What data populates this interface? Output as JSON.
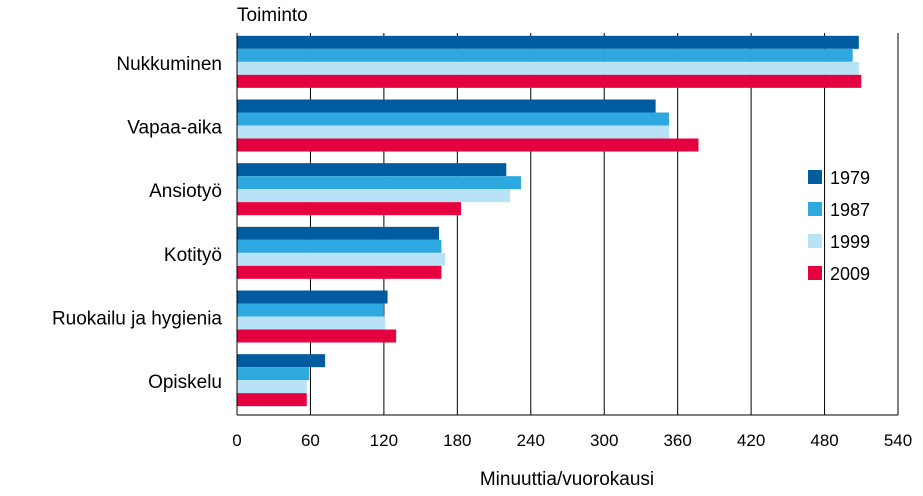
{
  "chart_data": {
    "type": "bar",
    "orientation": "horizontal",
    "title": "Toiminto",
    "xlabel": "Minuuttia/vuorokausi",
    "ylabel": "",
    "xlim": [
      0,
      540
    ],
    "xticks": [
      0,
      60,
      120,
      180,
      240,
      300,
      360,
      420,
      480,
      540
    ],
    "grid": "vertical",
    "legend_position": "right",
    "categories": [
      "Nukkuminen",
      "Vapaa-aika",
      "Ansiotyö",
      "Kotityö",
      "Ruokailu ja hygienia",
      "Opiskelu"
    ],
    "series": [
      {
        "name": "1979",
        "color": "#005c9e",
        "values": [
          508,
          342,
          220,
          165,
          123,
          72
        ]
      },
      {
        "name": "1987",
        "color": "#2ea9e0",
        "values": [
          503,
          353,
          232,
          167,
          120,
          59
        ]
      },
      {
        "name": "1999",
        "color": "#b8e3f7",
        "values": [
          508,
          353,
          223,
          170,
          121,
          57
        ]
      },
      {
        "name": "2009",
        "color": "#e5003f",
        "values": [
          510,
          377,
          183,
          167,
          130,
          57
        ]
      }
    ]
  }
}
